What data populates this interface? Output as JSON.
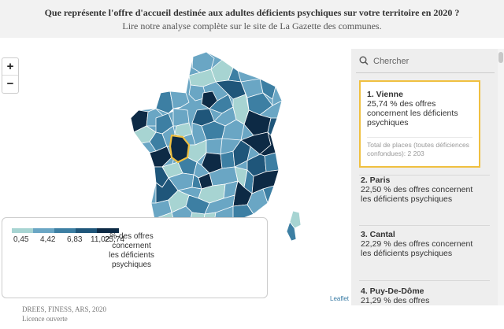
{
  "header": {
    "title": "Que représente l'offre d'accueil destinée aux adultes déficients psychiques sur votre territoire en 2020 ?",
    "subtitle": "Lire notre analyse complète sur le site de La Gazette des communes."
  },
  "map": {
    "zoom_in_label": "+",
    "zoom_out_label": "−",
    "highlighted_department": "Vienne",
    "highlight_color": "#f0c040",
    "scale_colors": [
      "#a7d4d2",
      "#6aa6c4",
      "#3d7fa3",
      "#1f567a",
      "#0d2a45"
    ]
  },
  "legend": {
    "ticks": [
      "0,45",
      "4,42",
      "6,83",
      "11,02",
      "25,74"
    ],
    "label": "% des offres concernent les déficients psychiques"
  },
  "attribution": "Leaflet",
  "source": {
    "line1": "DREES, FINESS, ARS, 2020",
    "line2": "Licence ouverte"
  },
  "sidebar": {
    "search_placeholder": "Chercher",
    "items": [
      {
        "name": "1. Vienne",
        "desc": "25,74 % des offres concernent les déficients psychiques",
        "extra": "Total de places (toutes déficiences confondues): 2 203"
      },
      {
        "name": "2. Paris",
        "desc": "22,50 % des offres concernent les déficients psychiques"
      },
      {
        "name": "3. Cantal",
        "desc": "22,29 % des offres concernent les déficients psychiques"
      },
      {
        "name": "4. Puy-De-Dôme",
        "desc": "21,29 % des offres"
      }
    ]
  }
}
